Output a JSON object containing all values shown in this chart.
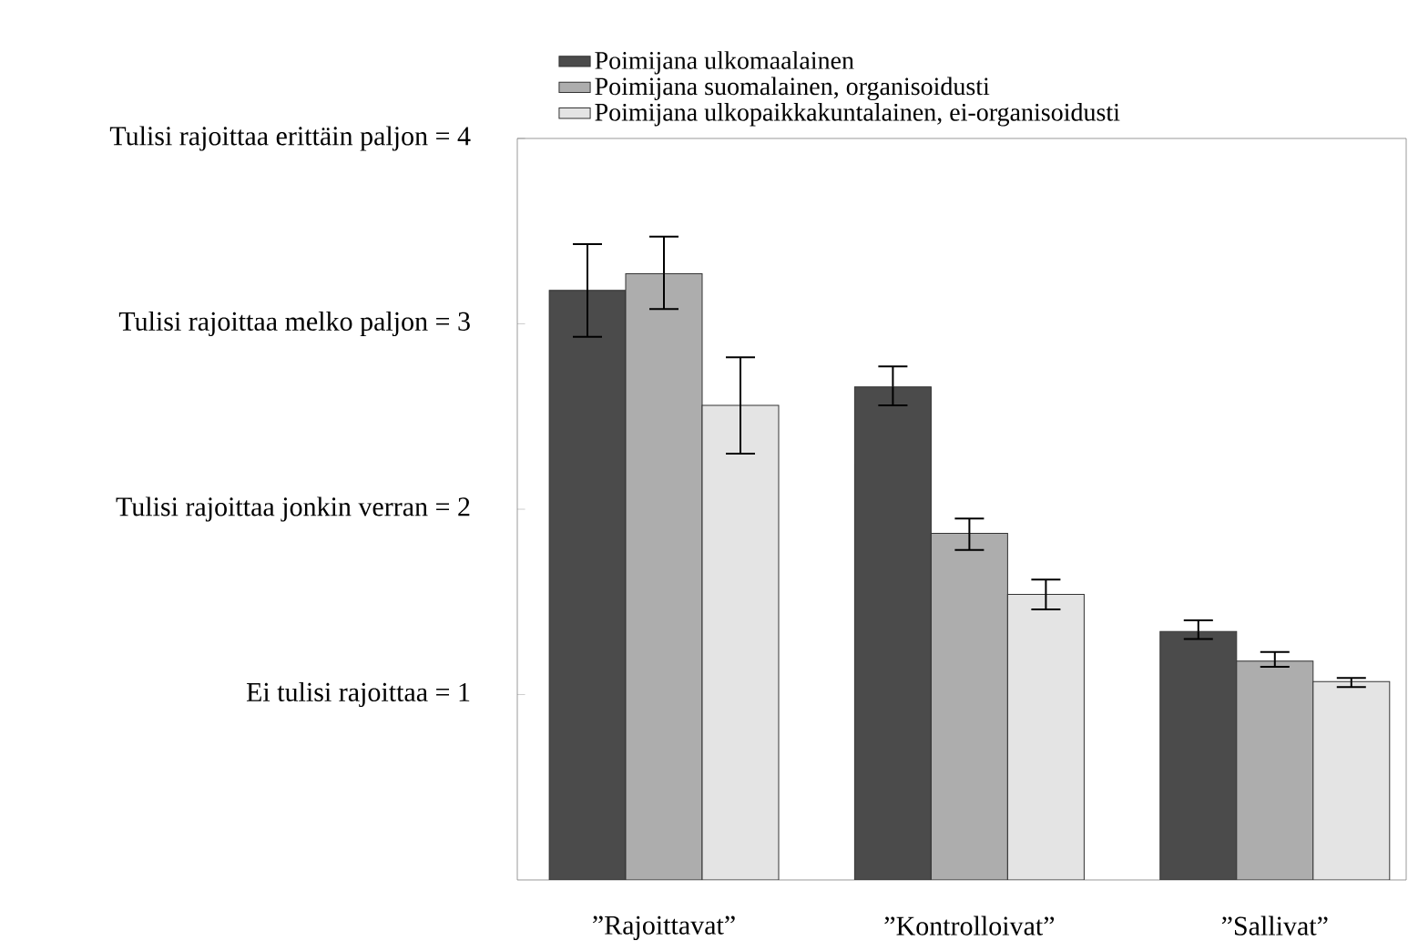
{
  "chart_data": {
    "type": "bar",
    "categories": [
      "”Rajoittavat”",
      "”Kontrolloivat”",
      "”Sallivat”"
    ],
    "series": [
      {
        "name": "Poimijana ulkomaalainen",
        "color": "#4b4b4b",
        "values": [
          3.18,
          2.66,
          1.34
        ],
        "errors": [
          [
            2.93,
            3.43
          ],
          [
            2.56,
            2.77
          ],
          [
            1.3,
            1.4
          ]
        ]
      },
      {
        "name": "Poimijana suomalainen, organisoidusti",
        "color": "#adadad",
        "values": [
          3.27,
          1.87,
          1.18
        ],
        "errors": [
          [
            3.08,
            3.47
          ],
          [
            1.78,
            1.95
          ],
          [
            1.15,
            1.23
          ]
        ]
      },
      {
        "name": "Poimijana ulkopaikkakuntalainen, ei-organisoidusti",
        "color": "#e4e4e4",
        "values": [
          2.56,
          1.54,
          1.07
        ],
        "errors": [
          [
            2.3,
            2.82
          ],
          [
            1.46,
            1.62
          ],
          [
            1.04,
            1.09
          ]
        ]
      }
    ],
    "ylim": [
      0,
      4
    ],
    "yticks": [
      {
        "value": 1,
        "label": "Ei tulisi rajoittaa = 1"
      },
      {
        "value": 2,
        "label": "Tulisi rajoittaa jonkin verran = 2"
      },
      {
        "value": 3,
        "label": "Tulisi rajoittaa melko paljon = 3"
      },
      {
        "value": 4,
        "label": "Tulisi rajoittaa erittäin paljon = 4"
      }
    ],
    "legend": "top"
  }
}
